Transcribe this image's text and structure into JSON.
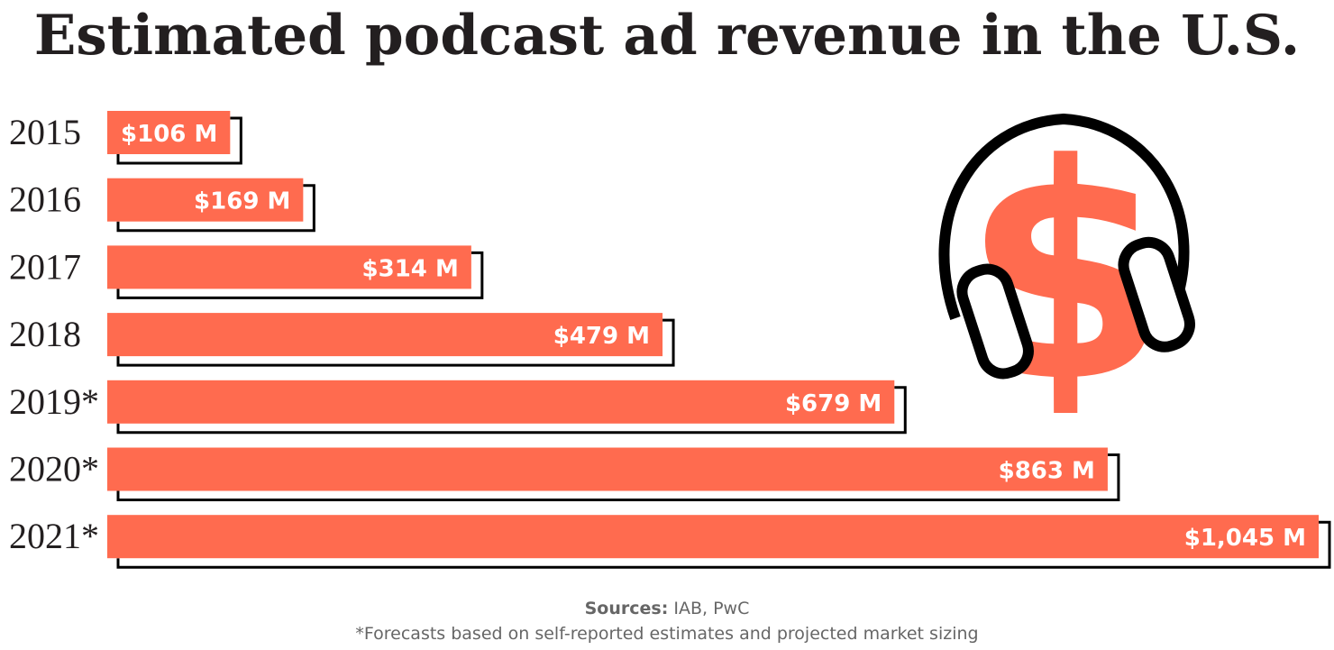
{
  "title": "Estimated podcast ad revenue in the U.S.",
  "colors": {
    "bar": "#ff6b4f",
    "outline": "#000000",
    "text": "#231f20",
    "footer": "#666666"
  },
  "icon": "headphones-dollar-icon",
  "chart_data": {
    "type": "bar",
    "orientation": "horizontal",
    "title": "Estimated podcast ad revenue in the U.S.",
    "categories": [
      "2015",
      "2016",
      "2017",
      "2018",
      "2019*",
      "2020*",
      "2021*"
    ],
    "values": [
      106,
      169,
      314,
      479,
      679,
      863,
      1045
    ],
    "value_labels": [
      "$106 M",
      "$169 M",
      "$314 M",
      "$479 M",
      "$679 M",
      "$863 M",
      "$1,045 M"
    ],
    "unit": "$ M",
    "xlim": [
      0,
      1045
    ],
    "xlabel": "",
    "ylabel": "",
    "grid": false,
    "legend": "none"
  },
  "footer": {
    "sources_label": "Sources:",
    "sources_text": " IAB, PwC",
    "note": "*Forecasts based on self-reported estimates and projected market sizing"
  }
}
